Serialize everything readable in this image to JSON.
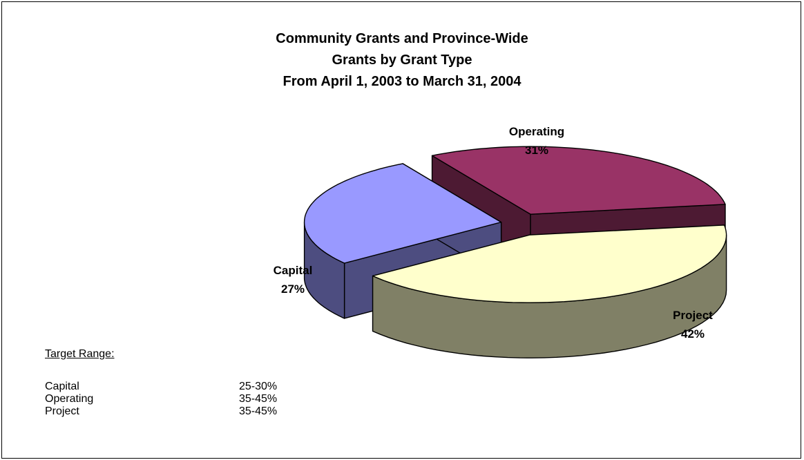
{
  "chart_data": {
    "type": "pie",
    "title": [
      "Community Grants and Province-Wide",
      "Grants by Grant Type",
      "From April 1, 2003 to March 31, 2004"
    ],
    "slices": [
      {
        "label": "Operating",
        "pct_label": "31%",
        "value": 31,
        "top_color": "#993366",
        "side_color": "#4d1a33"
      },
      {
        "label": "Project",
        "pct_label": "42%",
        "value": 42,
        "top_color": "#ffffcc",
        "side_color": "#808066"
      },
      {
        "label": "Capital",
        "pct_label": "27%",
        "value": 27,
        "top_color": "#9999ff",
        "side_color": "#4d4d80"
      }
    ],
    "view": "3d-exploded"
  },
  "target_range": {
    "title": "Target Range:",
    "rows": [
      {
        "category": "Capital",
        "range": "25-30%"
      },
      {
        "category": "Operating",
        "range": "35-45%"
      },
      {
        "category": "Project",
        "range": "35-45%"
      }
    ]
  }
}
